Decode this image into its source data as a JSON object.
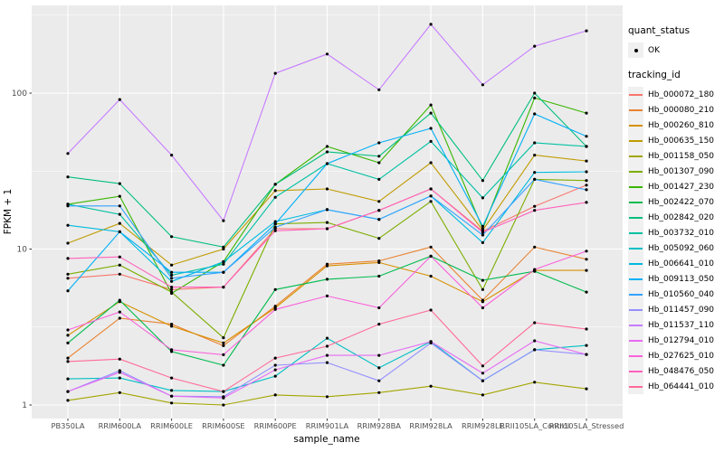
{
  "figure": {
    "background": "#FFFFFF",
    "panel_background": "#EBEBEB",
    "grid_color": "#FFFFFF",
    "tick_color": "#333333",
    "tick_label_color": "#4D4D4D",
    "axis_title_color": "#000000",
    "point_color": "#000000"
  },
  "axes": {
    "x_title": "sample_name",
    "y_title": "FPKM + 1"
  },
  "legend": {
    "quant_status_title": "quant_status",
    "ok_label": "OK",
    "ok_marker": "filled-black-circle",
    "tracking_id_title": "tracking_id"
  },
  "chart_data": {
    "type": "line",
    "title": "",
    "xlabel": "sample_name",
    "ylabel": "FPKM + 1",
    "grid": true,
    "legend_position": "right",
    "point_marker": "black filled circle (quant_status = OK) on every data point",
    "y_axis": {
      "scale": "log10",
      "ticks": [
        1,
        10,
        100
      ],
      "minor_gridlines": [
        3.162,
        31.62,
        316.2
      ],
      "range": [
        0.82,
        370
      ]
    },
    "categories": [
      "PB350LA",
      "RRIM600LA",
      "RRIM600LE",
      "RRIM600SE",
      "RRIM600PE",
      "RRIM901LA",
      "RRIM928BA",
      "RRIM928LA",
      "RRIM928LE",
      "RRII105LA_Control",
      "RRII105LA_Stressed"
    ],
    "series": [
      {
        "name": "Hb_000072_180",
        "color": "#F8766D",
        "values": [
          6.5,
          6.9,
          5.5,
          5.7,
          13.5,
          13.5,
          17.7,
          24.3,
          13.0,
          18.8,
          25.7
        ]
      },
      {
        "name": "Hb_000080_210",
        "color": "#EA8331",
        "values": [
          2.0,
          3.6,
          3.3,
          2.4,
          4.3,
          8.0,
          8.4,
          10.3,
          4.7,
          10.3,
          8.6
        ]
      },
      {
        "name": "Hb_000260_810",
        "color": "#D89000",
        "values": [
          2.8,
          4.6,
          3.2,
          2.5,
          4.2,
          7.8,
          8.2,
          6.7,
          4.6,
          7.3,
          7.3
        ]
      },
      {
        "name": "Hb_000635_150",
        "color": "#C09B00",
        "values": [
          10.9,
          14.6,
          7.9,
          10.0,
          23.7,
          24.3,
          20.2,
          35.8,
          13.2,
          40.0,
          36.7
        ]
      },
      {
        "name": "Hb_001158_050",
        "color": "#A3A500",
        "values": [
          1.07,
          1.2,
          1.03,
          1.0,
          1.16,
          1.13,
          1.2,
          1.32,
          1.16,
          1.4,
          1.27
        ]
      },
      {
        "name": "Hb_001307_090",
        "color": "#7CAE00",
        "values": [
          6.9,
          7.9,
          5.3,
          2.7,
          14.5,
          14.8,
          11.7,
          20.2,
          5.5,
          28.0,
          27.5
        ]
      },
      {
        "name": "Hb_001427_230",
        "color": "#39B600",
        "values": [
          19.4,
          21.8,
          5.2,
          8.3,
          26.0,
          45.5,
          35.8,
          84.0,
          13.5,
          93.0,
          74.5
        ]
      },
      {
        "name": "Hb_002422_070",
        "color": "#00BB4E",
        "values": [
          2.5,
          4.7,
          2.2,
          1.8,
          5.5,
          6.4,
          6.7,
          9.0,
          6.3,
          7.2,
          5.3
        ]
      },
      {
        "name": "Hb_002842_020",
        "color": "#00BF7D",
        "values": [
          29.0,
          26.3,
          12.0,
          10.3,
          26.0,
          42.0,
          39.4,
          74.5,
          27.5,
          100.0,
          45.5
        ]
      },
      {
        "name": "Hb_003732_010",
        "color": "#00C1A3",
        "values": [
          19.4,
          16.7,
          6.8,
          8.0,
          21.5,
          35.3,
          28.0,
          49.0,
          21.3,
          48.0,
          45.5
        ]
      },
      {
        "name": "Hb_005092_060",
        "color": "#00BFC4",
        "values": [
          1.47,
          1.49,
          1.24,
          1.22,
          1.53,
          2.68,
          1.73,
          2.55,
          1.43,
          2.26,
          2.41
        ]
      },
      {
        "name": "Hb_006641_010",
        "color": "#00BAE0",
        "values": [
          14.2,
          12.9,
          6.2,
          8.3,
          15.0,
          17.9,
          15.5,
          21.9,
          11.0,
          31.0,
          31.3
        ]
      },
      {
        "name": "Hb_009113_050",
        "color": "#00B0F6",
        "values": [
          5.4,
          12.9,
          7.1,
          7.1,
          14.5,
          35.3,
          48.0,
          59.4,
          14.0,
          73.6,
          52.8
        ]
      },
      {
        "name": "Hb_010560_040",
        "color": "#35A2FF",
        "values": [
          18.9,
          18.9,
          6.5,
          7.1,
          13.8,
          17.9,
          15.5,
          21.9,
          12.3,
          28.0,
          24.0
        ]
      },
      {
        "name": "Hb_011457_090",
        "color": "#9590FF",
        "values": [
          1.22,
          1.66,
          1.14,
          1.13,
          1.8,
          1.87,
          1.43,
          2.5,
          1.43,
          2.26,
          2.11
        ]
      },
      {
        "name": "Hb_011537_110",
        "color": "#C77CFF",
        "values": [
          41.0,
          91.0,
          40.0,
          15.2,
          134.0,
          178.0,
          105.0,
          276.0,
          113.0,
          200.0,
          251.0
        ]
      },
      {
        "name": "Hb_012794_010",
        "color": "#E76BF3",
        "values": [
          1.22,
          1.62,
          1.14,
          1.11,
          1.68,
          2.08,
          2.08,
          2.55,
          1.6,
          2.58,
          2.11
        ]
      },
      {
        "name": "Hb_027625_010",
        "color": "#FA62DB",
        "values": [
          3.03,
          3.95,
          2.26,
          2.1,
          4.1,
          5.0,
          4.2,
          9.0,
          4.2,
          7.4,
          9.7
        ]
      },
      {
        "name": "Hb_048476_050",
        "color": "#FF62BC",
        "values": [
          8.7,
          8.9,
          5.7,
          5.7,
          13.1,
          13.5,
          17.7,
          24.3,
          12.8,
          17.7,
          19.9
        ]
      },
      {
        "name": "Hb_064441_010",
        "color": "#FF6A98",
        "values": [
          1.9,
          1.97,
          1.49,
          1.22,
          2.0,
          2.38,
          3.3,
          4.06,
          1.78,
          3.37,
          3.07
        ]
      }
    ]
  }
}
